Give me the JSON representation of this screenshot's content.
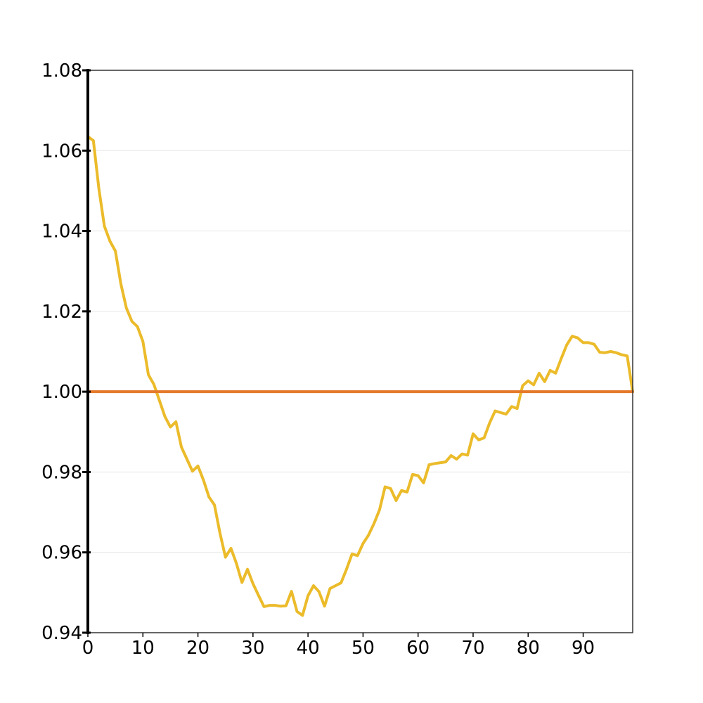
{
  "chart_data": {
    "type": "line",
    "title": "",
    "xlabel": "",
    "ylabel": "",
    "xlim": [
      0,
      99
    ],
    "ylim": [
      0.94,
      1.08
    ],
    "x_ticks": [
      0,
      10,
      20,
      30,
      40,
      50,
      60,
      70,
      80,
      90
    ],
    "x_tick_labels": [
      "0",
      "10",
      "20",
      "30",
      "40",
      "50",
      "60",
      "70",
      "80",
      "90"
    ],
    "y_ticks": [
      0.94,
      0.96,
      0.98,
      1.0,
      1.02,
      1.04,
      1.06,
      1.08
    ],
    "y_tick_labels": [
      "0.94",
      "0.96",
      "0.98",
      "1.00",
      "1.02",
      "1.04",
      "1.06",
      "1.08"
    ],
    "grid": "horizontal",
    "legend": "none",
    "series": [
      {
        "color": "#ebbb2a",
        "x": [
          0,
          1,
          2,
          3,
          4,
          5,
          6,
          7,
          8,
          9,
          10,
          11,
          12,
          13,
          14,
          15,
          16,
          17,
          18,
          19,
          20,
          21,
          22,
          23,
          24,
          25,
          26,
          27,
          28,
          29,
          30,
          31,
          32,
          33,
          34,
          35,
          36,
          37,
          38,
          39,
          40,
          41,
          42,
          43,
          44,
          45,
          46,
          47,
          48,
          49,
          50,
          51,
          52,
          53,
          54,
          55,
          56,
          57,
          58,
          59,
          60,
          61,
          62,
          63,
          64,
          65,
          66,
          67,
          68,
          69,
          70,
          71,
          72,
          73,
          74,
          75,
          76,
          77,
          78,
          79,
          80,
          81,
          82,
          83,
          84,
          85,
          86,
          87,
          88,
          89,
          90,
          91,
          92,
          93,
          94,
          95,
          96,
          97,
          98,
          99
        ],
        "y": [
          1.0635,
          1.0625,
          1.0505,
          1.0412,
          1.0375,
          1.035,
          1.0268,
          1.0208,
          1.0175,
          1.0162,
          1.0125,
          1.0042,
          1.0018,
          0.9978,
          0.9938,
          0.9912,
          0.9925,
          0.9862,
          0.9832,
          0.9802,
          0.9815,
          0.978,
          0.9738,
          0.9718,
          0.9648,
          0.9588,
          0.961,
          0.9572,
          0.9525,
          0.9558,
          0.9522,
          0.9493,
          0.9465,
          0.9468,
          0.9468,
          0.9466,
          0.9467,
          0.9503,
          0.9453,
          0.9443,
          0.9492,
          0.9517,
          0.9502,
          0.9466,
          0.951,
          0.9517,
          0.9524,
          0.9558,
          0.9596,
          0.9592,
          0.9622,
          0.9643,
          0.9672,
          0.9706,
          0.9763,
          0.9759,
          0.9729,
          0.9754,
          0.975,
          0.9794,
          0.9791,
          0.9773,
          0.9818,
          0.9821,
          0.9823,
          0.9825,
          0.9841,
          0.9832,
          0.9845,
          0.9842,
          0.9895,
          0.988,
          0.9885,
          0.9922,
          0.9952,
          0.9948,
          0.9944,
          0.9963,
          0.9958,
          1.0015,
          1.0027,
          1.0017,
          1.0046,
          1.0025,
          1.0053,
          1.0046,
          1.0082,
          1.0116,
          1.0138,
          1.0134,
          1.0122,
          1.0122,
          1.0118,
          1.0098,
          1.0097,
          1.01,
          1.0097,
          1.0092,
          1.0089,
          1.0
        ]
      },
      {
        "color": "#e57a2b",
        "x": [
          0,
          99
        ],
        "y": [
          1.0,
          1.0
        ]
      }
    ]
  }
}
